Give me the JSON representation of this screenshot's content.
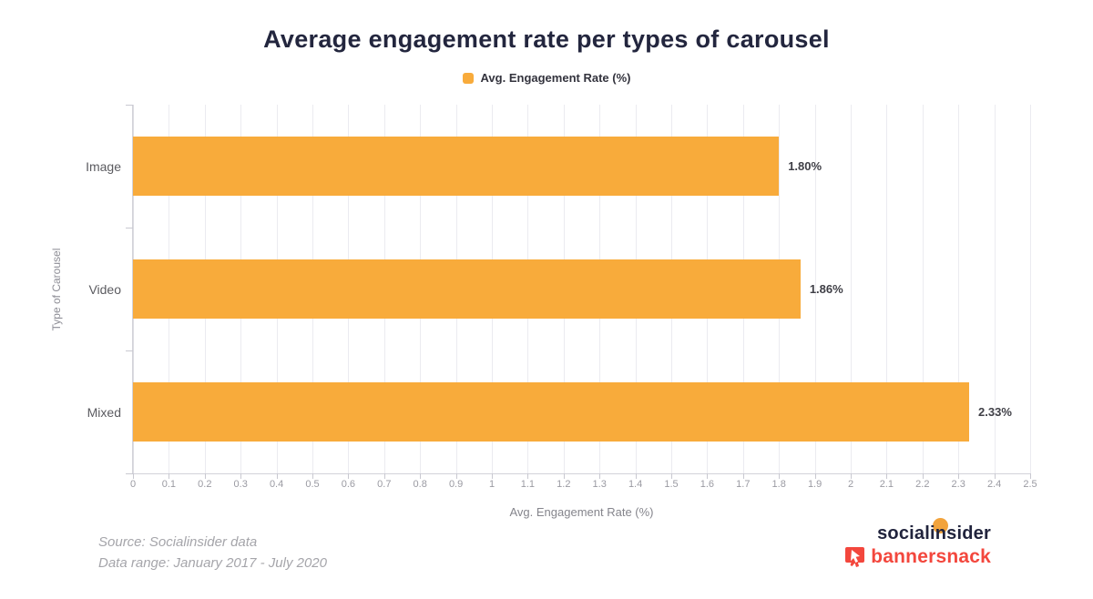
{
  "title": "Average engagement rate per types of carousel",
  "legend": {
    "label": "Avg. Engagement Rate (%)",
    "color": "#F8AB3B"
  },
  "chart_data": {
    "type": "bar",
    "orientation": "horizontal",
    "title": "Average engagement rate per types of carousel",
    "categories": [
      "Image",
      "Video",
      "Mixed"
    ],
    "values": [
      1.8,
      1.86,
      2.33
    ],
    "value_labels": [
      "1.80%",
      "1.86%",
      "2.33%"
    ],
    "series_name": "Avg. Engagement Rate (%)",
    "xlabel": "Avg. Engagement Rate (%)",
    "ylabel": "Type of Carousel",
    "xlim": [
      0,
      2.5
    ],
    "xticks": [
      0,
      0.1,
      0.2,
      0.3,
      0.4,
      0.5,
      0.6,
      0.7,
      0.8,
      0.9,
      1,
      1.1,
      1.2,
      1.3,
      1.4,
      1.5,
      1.6,
      1.7,
      1.8,
      1.9,
      2,
      2.1,
      2.2,
      2.3,
      2.4,
      2.5
    ],
    "xtick_labels": [
      "0",
      "0.1",
      "0.2",
      "0.3",
      "0.4",
      "0.5",
      "0.6",
      "0.7",
      "0.8",
      "0.9",
      "1",
      "1.1",
      "1.2",
      "1.3",
      "1.4",
      "1.5",
      "1.6",
      "1.7",
      "1.8",
      "1.9",
      "2",
      "2.1",
      "2.2",
      "2.3",
      "2.4",
      "2.5"
    ],
    "grid": true,
    "legend_position": "top",
    "bar_color": "#F8AB3B"
  },
  "footer": {
    "source_line1": "Source: Socialinsider data",
    "source_line2": "Data range: January 2017 - July 2020"
  },
  "branding": {
    "socialinsider": "socialinsider",
    "bannersnack": "bannersnack"
  },
  "colors": {
    "bar": "#F8AB3B",
    "title_text": "#23263E",
    "tick_text": "#9A9AA2",
    "category_text": "#5B5B60",
    "value_text": "#3F3F46",
    "gridline": "#EBEBF0",
    "axis_line": "#D2D2D9",
    "source_text": "#A5A5AA",
    "socialinsider_navy": "#21243D",
    "socialinsider_orange": "#F2A33C",
    "bannersnack_red": "#F3473D"
  }
}
